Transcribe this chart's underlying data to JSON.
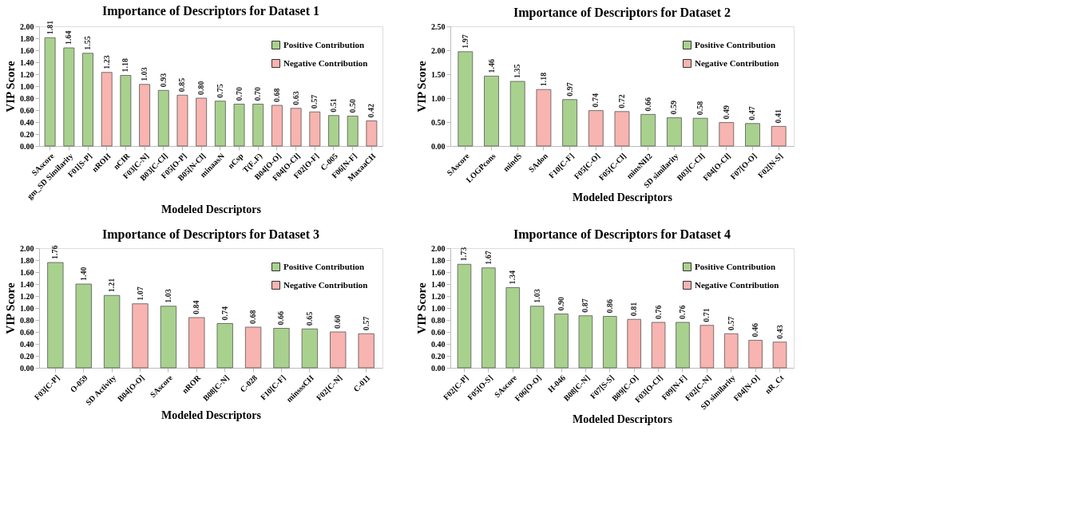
{
  "chart_data": [
    {
      "type": "bar",
      "title": "Importance of Descriptors for Dataset 1",
      "xlabel": "Modeled Descriptors",
      "ylabel": "VIP Score",
      "legend": "top right",
      "grid": false,
      "categories": [
        "SAscore",
        "gm_SD Similarity",
        "F01[S-P]",
        "nROH",
        "nCIR",
        "F03[C-N]",
        "B03[C-Cl]",
        "F05[O-P]",
        "B05[N-Cl]",
        "minaasN",
        "nCsp",
        "T(F..F)",
        "B04[O-O]",
        "F04[O-Cl]",
        "F02[O-F]",
        "C-005",
        "F06[N-F]",
        "MaxaaCH"
      ],
      "ylim": [
        0,
        2
      ],
      "yticks": [
        {
          "value": 0,
          "label": "0.00"
        },
        {
          "value": 0.2,
          "label": "0.20"
        },
        {
          "value": 0.4,
          "label": "0.40"
        },
        {
          "value": 0.6,
          "label": "0.60"
        },
        {
          "value": 0.8,
          "label": "0.80"
        },
        {
          "value": 1,
          "label": "1.00"
        },
        {
          "value": 1.2,
          "label": "1.20"
        },
        {
          "value": 1.4,
          "label": "1.40"
        },
        {
          "value": 1.6,
          "label": "1.60"
        },
        {
          "value": 1.8,
          "label": "1.80"
        },
        {
          "value": 2,
          "label": "2.00"
        }
      ],
      "series": [
        {
          "name": "Positive Contribution",
          "color": "#a9d18e",
          "values": [
            1.81,
            1.64,
            1.55,
            null,
            1.18,
            null,
            0.93,
            null,
            null,
            0.75,
            0.7,
            0.7,
            null,
            null,
            null,
            0.51,
            0.5,
            null
          ],
          "value_labels": [
            "1.81",
            "1.64",
            "1.55",
            null,
            "1.18",
            null,
            "0.93",
            null,
            null,
            "0.75",
            "0.70",
            "0.70",
            null,
            null,
            null,
            "0.51",
            "0.50",
            null
          ]
        },
        {
          "name": "Negative Contribution",
          "color": "#f8b4b0",
          "values": [
            null,
            null,
            null,
            1.23,
            null,
            1.03,
            null,
            0.85,
            0.8,
            null,
            null,
            null,
            0.68,
            0.63,
            0.57,
            null,
            null,
            0.42
          ],
          "value_labels": [
            null,
            null,
            null,
            "1.23",
            null,
            "1.03",
            null,
            "0.85",
            "0.80",
            null,
            null,
            null,
            "0.68",
            "0.63",
            "0.57",
            null,
            null,
            "0.42"
          ]
        }
      ]
    },
    {
      "type": "bar",
      "title": "Importance of Descriptors for Dataset 2",
      "xlabel": "Modeled Descriptors",
      "ylabel": "VIP Score",
      "legend": "top right",
      "grid": false,
      "categories": [
        "SAscore",
        "LOGPcons",
        "mindS",
        "SAdon",
        "F10[C-F]",
        "F05[C-O]",
        "F05[C-Cl]",
        "minsNH2",
        "SD similarity",
        "B03[C-Cl]",
        "F04[O-Cl]",
        "F07[O-O]",
        "F02[N-S]"
      ],
      "ylim": [
        0,
        2.5
      ],
      "yticks": [
        {
          "value": 0,
          "label": "0.00"
        },
        {
          "value": 0.5,
          "label": "0.50"
        },
        {
          "value": 1,
          "label": "1.00"
        },
        {
          "value": 1.5,
          "label": "1.50"
        },
        {
          "value": 2,
          "label": "2.00"
        },
        {
          "value": 2.5,
          "label": "2.50"
        }
      ],
      "series": [
        {
          "name": "Positive Contribution",
          "color": "#a9d18e",
          "values": [
            1.97,
            1.46,
            1.35,
            null,
            0.97,
            null,
            null,
            0.66,
            0.59,
            0.58,
            null,
            0.47,
            null
          ],
          "value_labels": [
            "1.97",
            "1.46",
            "1.35",
            null,
            "0.97",
            null,
            null,
            "0.66",
            "0.59",
            "0.58",
            null,
            "0.47",
            null
          ]
        },
        {
          "name": "Negative Contribution",
          "color": "#f8b4b0",
          "values": [
            null,
            null,
            null,
            1.18,
            null,
            0.74,
            0.72,
            null,
            null,
            null,
            0.49,
            null,
            0.41
          ],
          "value_labels": [
            null,
            null,
            null,
            "1.18",
            null,
            "0.74",
            "0.72",
            null,
            null,
            null,
            "0.49",
            null,
            "0.41"
          ]
        }
      ]
    },
    {
      "type": "bar",
      "title": "Importance of Descriptors for Dataset 3",
      "xlabel": "Modeled Descriptors",
      "ylabel": "VIP Score",
      "legend": "top right",
      "grid": false,
      "categories": [
        "F03[C-P]",
        "O-059",
        "SD Activity",
        "B04[O-O]",
        "SAscore",
        "nROR",
        "B08[C-N]",
        "C-028",
        "F10[C-F]",
        "minsssCH",
        "F02[C-N]",
        "C-011"
      ],
      "ylim": [
        0,
        2
      ],
      "yticks": [
        {
          "value": 0,
          "label": "0.00"
        },
        {
          "value": 0.2,
          "label": "0.20"
        },
        {
          "value": 0.4,
          "label": "0.40"
        },
        {
          "value": 0.6,
          "label": "0.60"
        },
        {
          "value": 0.8,
          "label": "0.80"
        },
        {
          "value": 1,
          "label": "1.00"
        },
        {
          "value": 1.2,
          "label": "1.20"
        },
        {
          "value": 1.4,
          "label": "1.40"
        },
        {
          "value": 1.6,
          "label": "1.60"
        },
        {
          "value": 1.8,
          "label": "1.80"
        },
        {
          "value": 2,
          "label": "2.00"
        }
      ],
      "series": [
        {
          "name": "Positive Contribution",
          "color": "#a9d18e",
          "values": [
            1.76,
            1.4,
            1.21,
            null,
            1.03,
            null,
            0.74,
            null,
            0.66,
            0.65,
            null,
            null
          ],
          "value_labels": [
            "1.76",
            "1.40",
            "1.21",
            null,
            "1.03",
            null,
            "0.74",
            null,
            "0.66",
            "0.65",
            null,
            null
          ]
        },
        {
          "name": "Negative Contribution",
          "color": "#f8b4b0",
          "values": [
            null,
            null,
            null,
            1.07,
            null,
            0.84,
            null,
            0.68,
            null,
            null,
            0.6,
            0.57
          ],
          "value_labels": [
            null,
            null,
            null,
            "1.07",
            null,
            "0.84",
            null,
            "0.68",
            null,
            null,
            "0.60",
            "0.57"
          ]
        }
      ]
    },
    {
      "type": "bar",
      "title": "Importance of Descriptors for Dataset 4",
      "xlabel": "Modeled Descriptors",
      "ylabel": "VIP Score",
      "legend": "top right",
      "grid": false,
      "categories": [
        "F02[C-P]",
        "F05[O-S]",
        "SAscore",
        "F06[O-O]",
        "H-046",
        "B08[C-N]",
        "F07[S-S]",
        "B09[C-O]",
        "F03[O-Cl]",
        "F09[N-F]",
        "F02[C-N]",
        "SD similarity",
        "F04[N-O]",
        "nR_Ct"
      ],
      "ylim": [
        0,
        2
      ],
      "yticks": [
        {
          "value": 0,
          "label": "0.00"
        },
        {
          "value": 0.2,
          "label": "0.20"
        },
        {
          "value": 0.4,
          "label": "0.40"
        },
        {
          "value": 0.6,
          "label": "0.60"
        },
        {
          "value": 0.8,
          "label": "0.80"
        },
        {
          "value": 1,
          "label": "1.00"
        },
        {
          "value": 1.2,
          "label": "1.20"
        },
        {
          "value": 1.4,
          "label": "1.40"
        },
        {
          "value": 1.6,
          "label": "1.60"
        },
        {
          "value": 1.8,
          "label": "1.80"
        },
        {
          "value": 2,
          "label": "2.00"
        }
      ],
      "series": [
        {
          "name": "Positive Contribution",
          "color": "#a9d18e",
          "values": [
            1.73,
            1.67,
            1.34,
            1.03,
            0.9,
            0.87,
            0.86,
            null,
            null,
            0.76,
            null,
            null,
            null,
            null
          ],
          "value_labels": [
            "1.73",
            "1.67",
            "1.34",
            "1.03",
            "0.90",
            "0.87",
            "0.86",
            null,
            null,
            "0.76",
            null,
            null,
            null,
            null
          ]
        },
        {
          "name": "Negative Contribution",
          "color": "#f8b4b0",
          "values": [
            null,
            null,
            null,
            null,
            null,
            null,
            null,
            0.81,
            0.76,
            null,
            0.71,
            0.57,
            0.46,
            0.43
          ],
          "value_labels": [
            null,
            null,
            null,
            null,
            null,
            null,
            null,
            "0.81",
            "0.76",
            null,
            "0.71",
            "0.57",
            "0.46",
            "0.43"
          ]
        }
      ]
    }
  ]
}
